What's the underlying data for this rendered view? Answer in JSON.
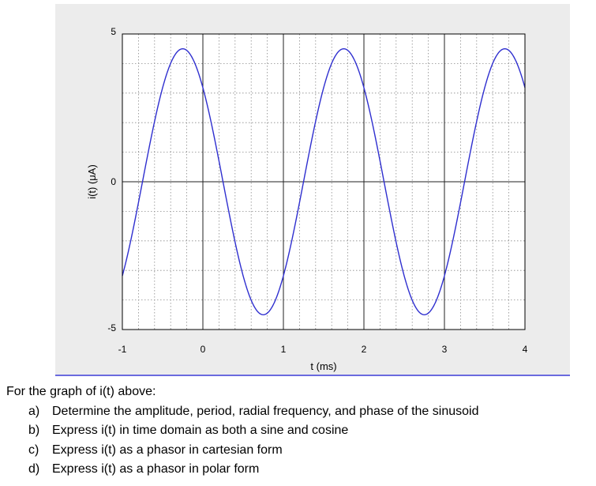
{
  "chart_data": {
    "type": "line",
    "title": "",
    "xlabel": "t (ms)",
    "ylabel": "i(t) (μA)",
    "xlim": [
      -1,
      4
    ],
    "ylim": [
      -5,
      5
    ],
    "xticks": [
      -1,
      0,
      1,
      2,
      3,
      4
    ],
    "yticks": [
      -5,
      0,
      5
    ],
    "xtick_labels": [
      "-1",
      "0",
      "1",
      "2",
      "3",
      "4"
    ],
    "ytick_labels": [
      "-5",
      "0",
      "5"
    ],
    "grid": true,
    "grid_minor": true,
    "series": [
      {
        "name": "",
        "color": "#2f2fcf",
        "function": "A*sin(2*pi*t/T + phi)",
        "amplitude": 4.5,
        "period": 2,
        "phase_deg": 135
      }
    ]
  },
  "question": {
    "intro": "For the graph of i(t) above:",
    "items": [
      {
        "letter": "a)",
        "text": "Determine the amplitude, period, radial frequency, and phase of the sinusoid"
      },
      {
        "letter": "b)",
        "text": "Express i(t) in time domain as both a sine and cosine"
      },
      {
        "letter": "c)",
        "text": "Express i(t) as a phasor in cartesian form"
      },
      {
        "letter": "d)",
        "text": "Express i(t) as a phasor in polar form"
      }
    ]
  },
  "colors": {
    "figure_bg": "#ececec",
    "axes_bg": "#ffffff",
    "separator": "#3b3bd6"
  }
}
